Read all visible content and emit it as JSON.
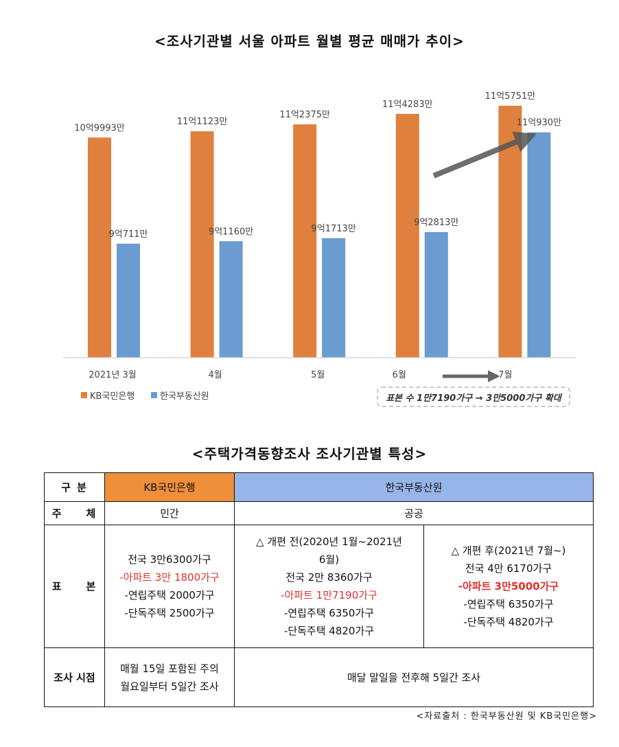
{
  "chart_title": "<조사기관별 서울 아파트 월별 평균 매매가 추이>",
  "chart_data": {
    "type": "bar",
    "categories": [
      "2021년 3월",
      "4월",
      "5월",
      "6월",
      "7월"
    ],
    "series": [
      {
        "name": "KB국민은행",
        "color": "#e0803e",
        "values": [
          109993,
          111123,
          112375,
          114283,
          115751
        ],
        "labels": [
          "10억9993만",
          "11억1123만",
          "11억2375만",
          "11억4283만",
          "11억5751만"
        ]
      },
      {
        "name": "한국부동산원",
        "color": "#6a9bd1",
        "values": [
          90711,
          91160,
          91713,
          92813,
          110930
        ],
        "labels": [
          "9억711만",
          "9억1160만",
          "9억1713만",
          "9억2813만",
          "11억930만"
        ]
      }
    ],
    "unit": "만원",
    "ylim": [
      70000,
      120000
    ],
    "grid": false,
    "legend_position": "bottom-left",
    "annotation": "표본 수 1만7190가구 → 3만5000가구 확대"
  },
  "table_title": "<주택가격동향조사 조사기관별 특성>",
  "table": {
    "header_label": "구 분",
    "kb_name": "KB국민은행",
    "rb_name": "한국부동산원",
    "subject_label": "주　　체",
    "kb_subject": "민간",
    "rb_subject": "공공",
    "sample_label": "표　　본",
    "kb_sample": [
      "전국 3만6300가구",
      "-아파트 3만 1800가구",
      "-연립주택 2000가구",
      "-단독주택 2500가구"
    ],
    "rb_before": [
      "△ 개편 전(2020년 1월~2021년",
      "6월)",
      "전국 2만 8360가구",
      "-아파트 1만7190가구",
      "-연립주택 6350가구",
      "-단독주택 4820가구"
    ],
    "rb_after": [
      "△ 개편 후(2021년 7월~)",
      "전국 4만 6170가구",
      "-아파트 3만5000가구",
      "-연립주택 6350가구",
      "-단독주택 4820가구"
    ],
    "timing_label": "조사 시점",
    "kb_timing": [
      "매월 15일 포함된 주의",
      "월요일부터 5일간 조사"
    ],
    "rb_timing": "매달 말일을 전후해 5일간 조사"
  },
  "source": "<자료출처 : 한국부동산원 및 KB국민은행>"
}
